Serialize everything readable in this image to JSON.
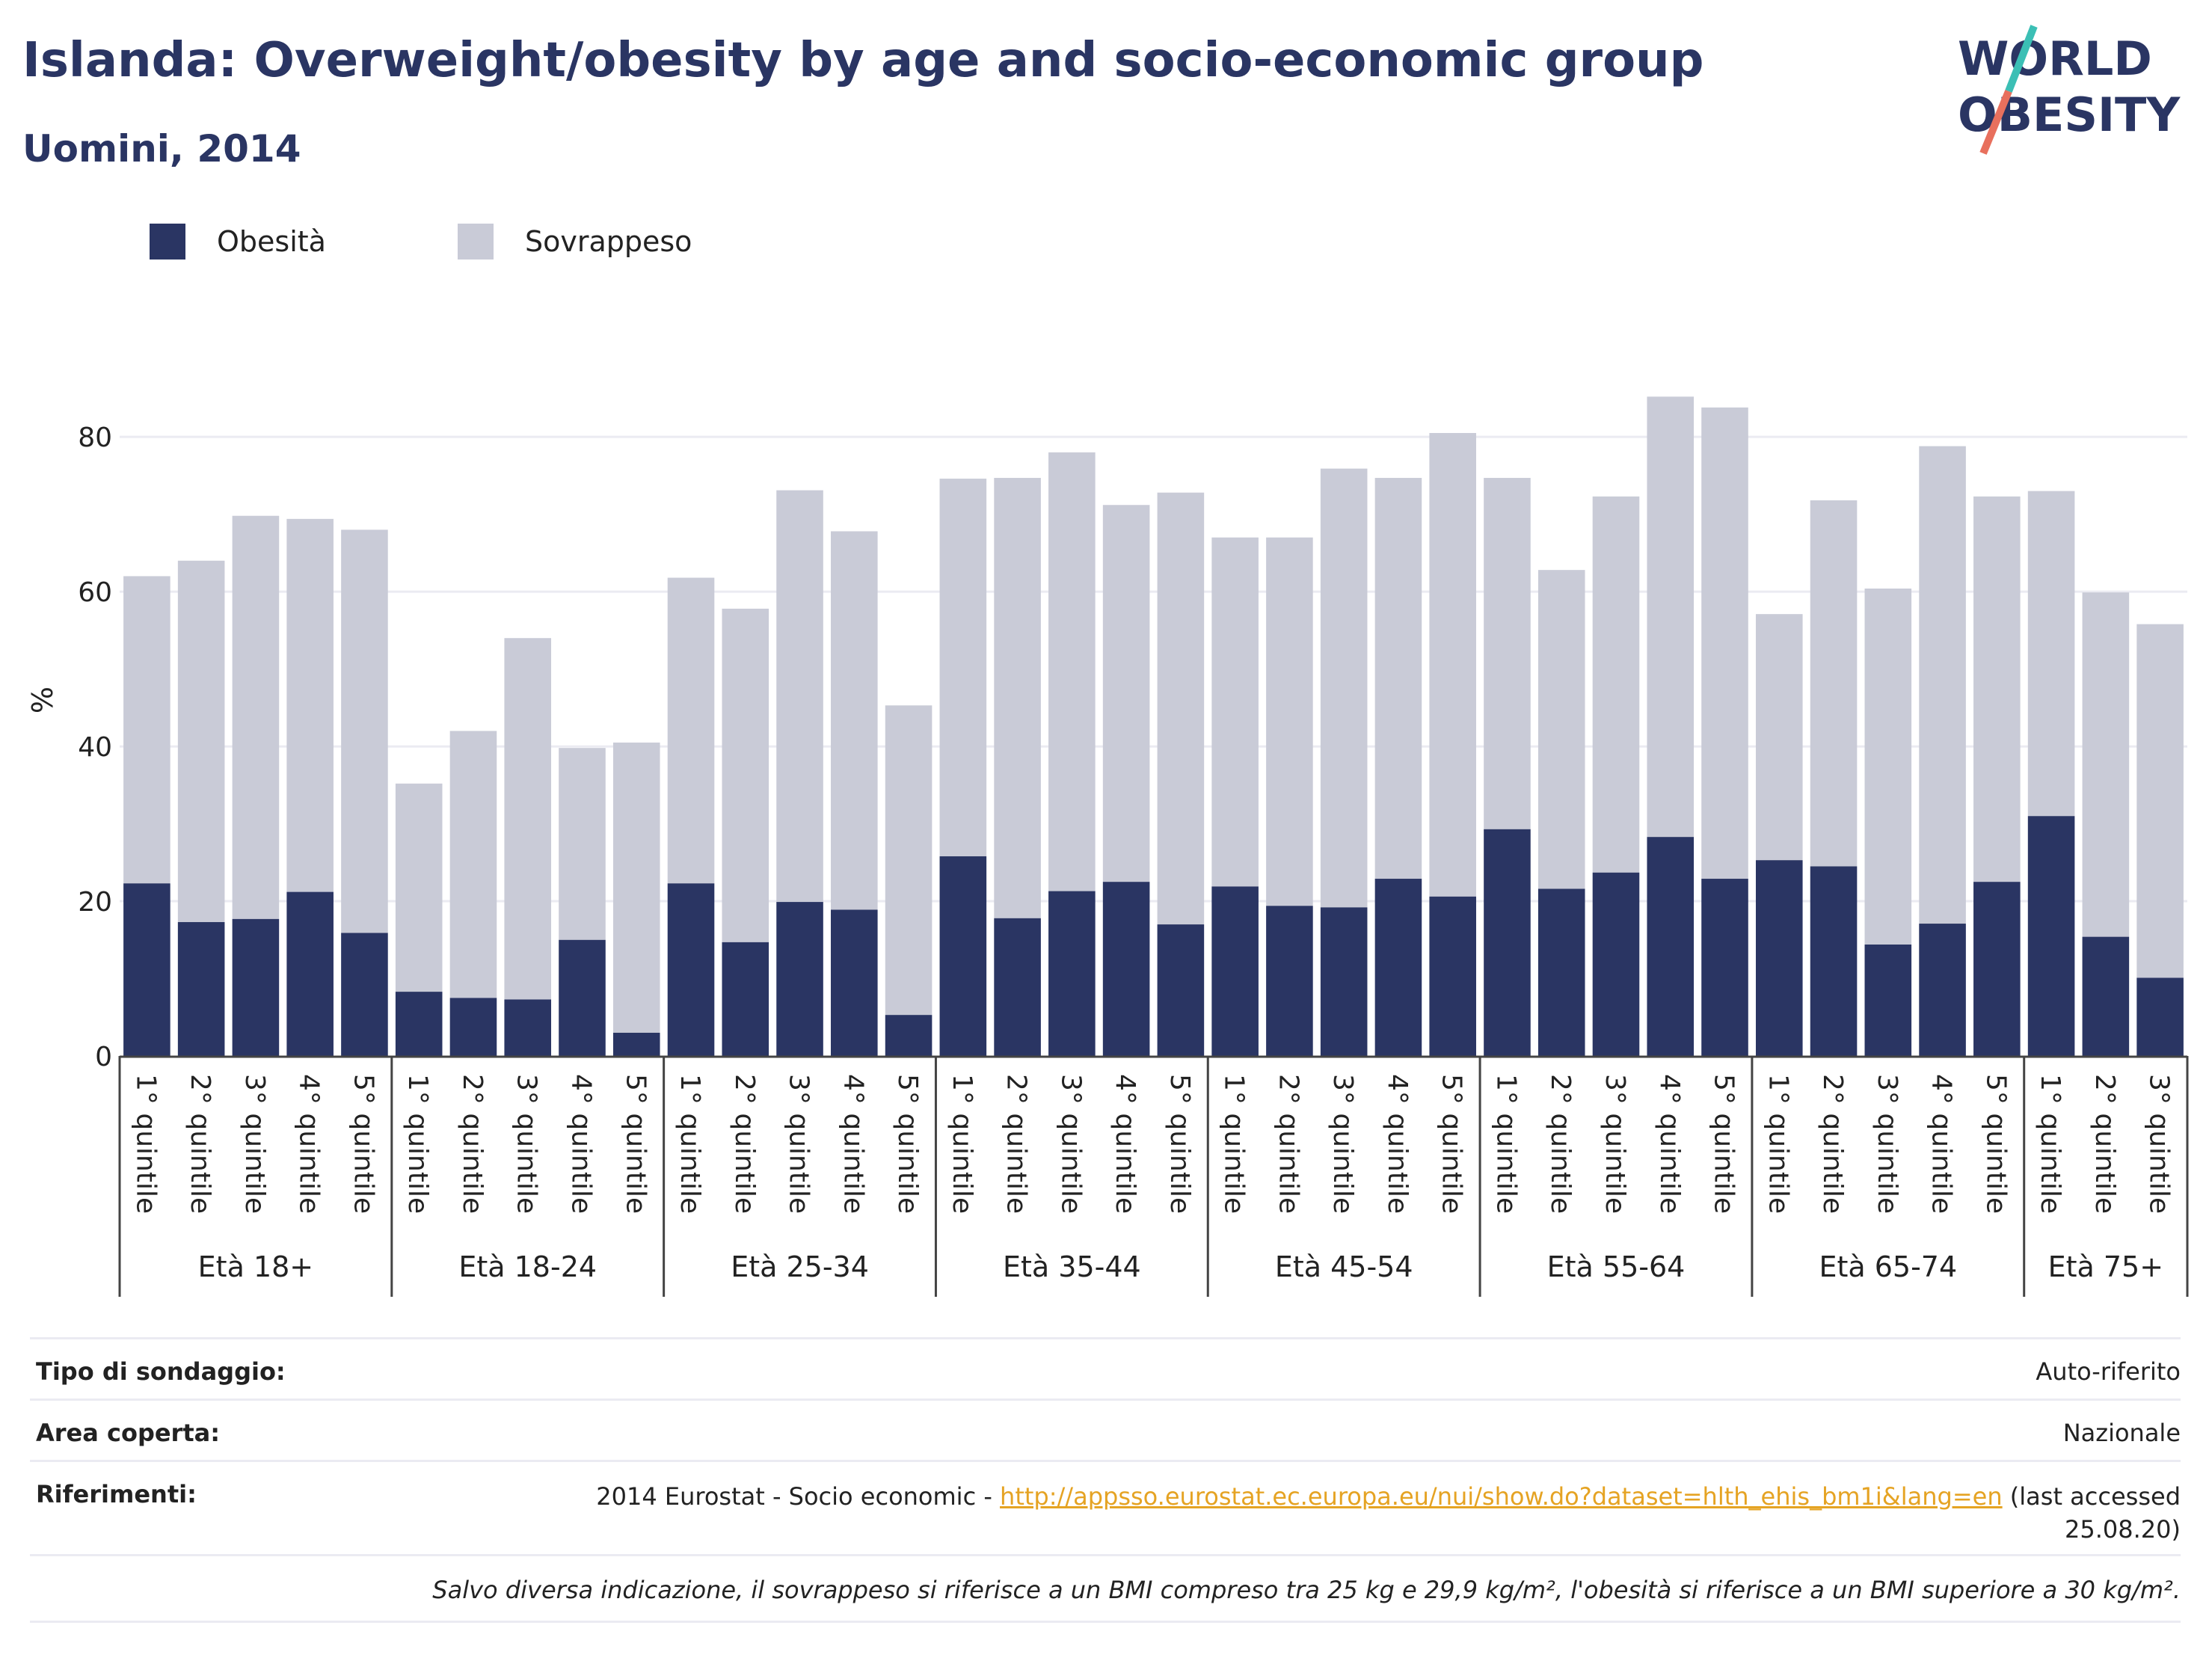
{
  "header": {
    "title": "Islanda: Overweight/obesity by age and socio-economic group",
    "subtitle": "Uomini, 2014"
  },
  "logo": {
    "line1": "WORLD",
    "line2": "OBESITY",
    "colors": {
      "text": "#2a3563",
      "slash_top": "#3bbfb5",
      "slash_bottom": "#e8705d"
    }
  },
  "legend": [
    {
      "label": "Obesità",
      "color": "#2a3563"
    },
    {
      "label": "Sovrappeso",
      "color": "#c9cbd7"
    }
  ],
  "chart_data": {
    "type": "bar",
    "stacked": true,
    "ylabel": "%",
    "ylim": [
      0,
      92
    ],
    "yticks": [
      0,
      20,
      40,
      60,
      80
    ],
    "grid": true,
    "legend_position": "top-left",
    "groups": [
      {
        "label": "Età 18+",
        "categories": [
          "1° quintile",
          "2° quintile",
          "3° quintile",
          "4° quintile",
          "5° quintile"
        ],
        "obesity": [
          22.3,
          17.3,
          17.7,
          21.2,
          15.9
        ],
        "total": [
          62.0,
          64.0,
          69.8,
          69.4,
          68.0
        ]
      },
      {
        "label": "Età 18-24",
        "categories": [
          "1° quintile",
          "2° quintile",
          "3° quintile",
          "4° quintile",
          "5° quintile"
        ],
        "obesity": [
          8.3,
          7.5,
          7.3,
          15.0,
          3.0
        ],
        "total": [
          35.2,
          42.0,
          54.0,
          39.8,
          40.5
        ]
      },
      {
        "label": "Età 25-34",
        "categories": [
          "1° quintile",
          "2° quintile",
          "3° quintile",
          "4° quintile",
          "5° quintile"
        ],
        "obesity": [
          22.3,
          14.7,
          19.9,
          18.9,
          5.3
        ],
        "total": [
          61.8,
          57.8,
          73.1,
          67.8,
          45.3
        ]
      },
      {
        "label": "Età 35-44",
        "categories": [
          "1° quintile",
          "2° quintile",
          "3° quintile",
          "4° quintile",
          "5° quintile"
        ],
        "obesity": [
          25.8,
          17.8,
          21.3,
          22.5,
          17.0
        ],
        "total": [
          74.6,
          74.7,
          78.0,
          71.2,
          72.8
        ]
      },
      {
        "label": "Età 45-54",
        "categories": [
          "1° quintile",
          "2° quintile",
          "3° quintile",
          "4° quintile",
          "5° quintile"
        ],
        "obesity": [
          21.9,
          19.4,
          19.2,
          22.9,
          20.6
        ],
        "total": [
          67.0,
          67.0,
          75.9,
          74.7,
          80.5
        ]
      },
      {
        "label": "Età 55-64",
        "categories": [
          "1° quintile",
          "2° quintile",
          "3° quintile",
          "4° quintile",
          "5° quintile"
        ],
        "obesity": [
          29.3,
          21.6,
          23.7,
          28.3,
          22.9
        ],
        "total": [
          74.7,
          62.8,
          72.3,
          85.2,
          83.8
        ]
      },
      {
        "label": "Età 65-74",
        "categories": [
          "1° quintile",
          "2° quintile",
          "3° quintile",
          "4° quintile",
          "5° quintile"
        ],
        "obesity": [
          25.3,
          24.5,
          14.4,
          17.1,
          22.5
        ],
        "total": [
          57.1,
          71.8,
          60.4,
          78.8,
          72.3
        ]
      },
      {
        "label": "Età 75+",
        "categories": [
          "1° quintile",
          "2° quintile",
          "3° quintile"
        ],
        "obesity": [
          31.0,
          15.4,
          10.1
        ],
        "total": [
          73.0,
          59.9,
          55.8
        ]
      }
    ]
  },
  "info": {
    "survey_type_label": "Tipo di sondaggio:",
    "survey_type_value": "Auto-riferito",
    "area_label": "Area coperta:",
    "area_value": "Nazionale",
    "refs_label": "Riferimenti:",
    "refs_prefix": "2014 Eurostat - Socio economic - ",
    "refs_link": "http://appsso.eurostat.ec.europa.eu/nui/show.do?dataset=hlth_ehis_bm1i&lang=en",
    "refs_suffix": " (last accessed",
    "refs_date": "25.08.20)",
    "note": "Salvo diversa indicazione, il sovrappeso si riferisce a un BMI compreso tra 25 kg e 29,9 kg/m², l'obesità si riferisce a un BMI superiore a 30 kg/m²."
  }
}
